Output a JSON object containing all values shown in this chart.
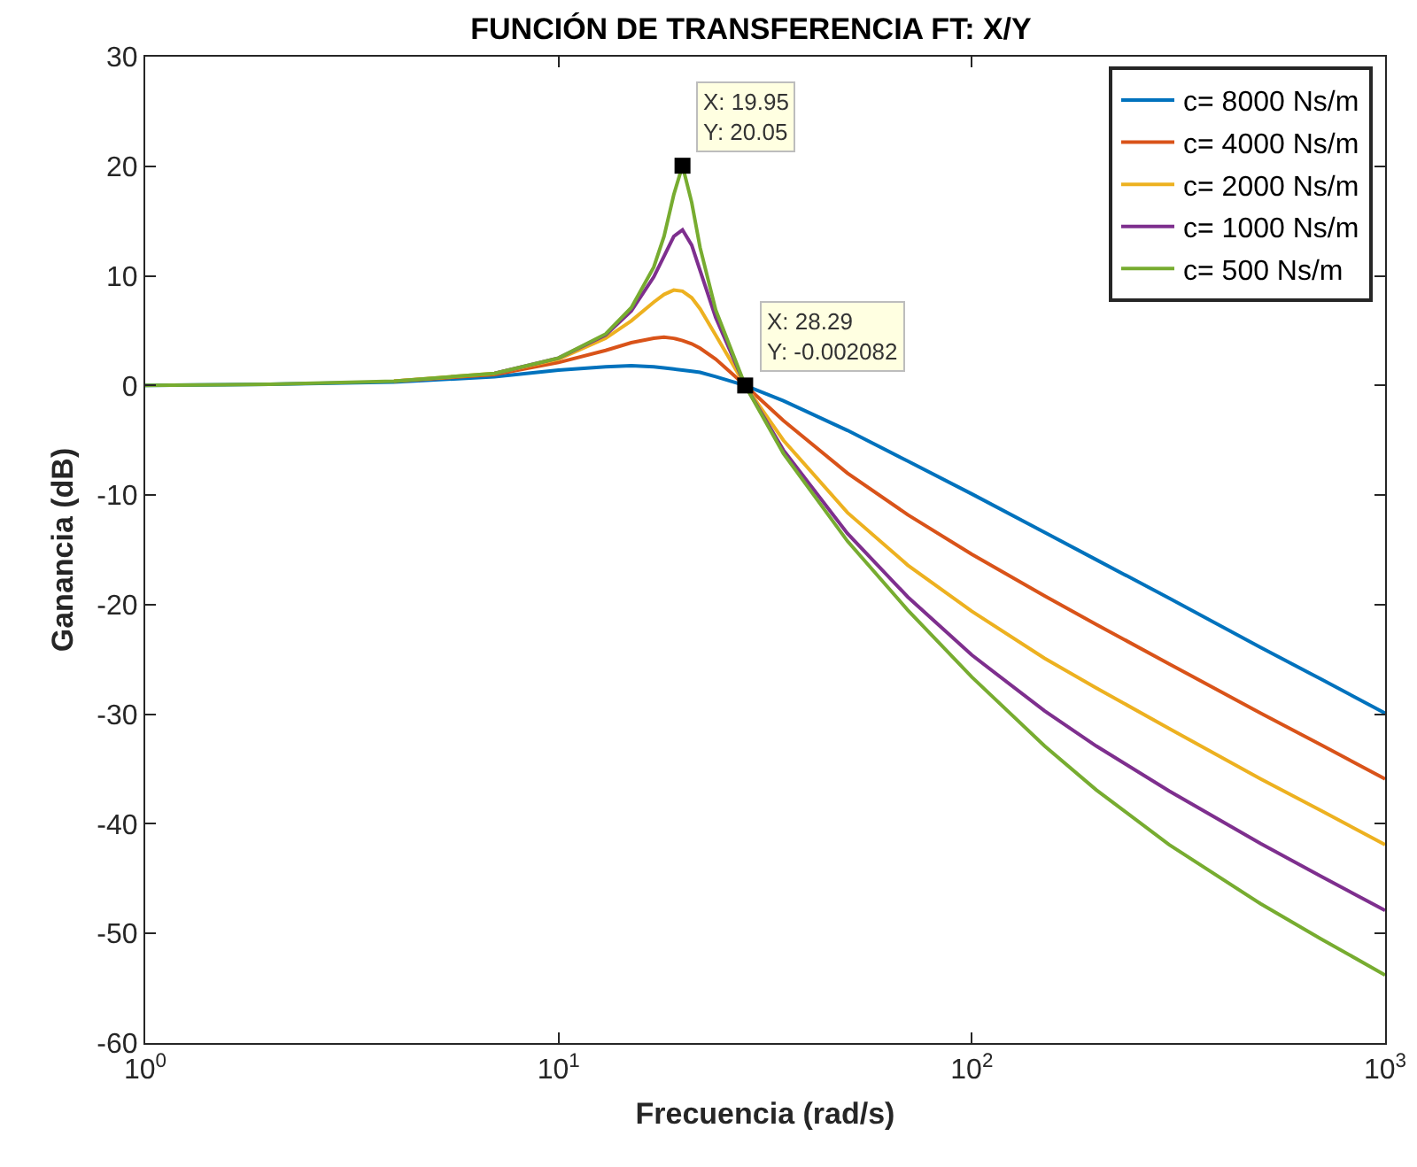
{
  "chart_data": {
    "type": "line",
    "title": "FUNCIÓN DE TRANSFERENCIA FT: X/Y",
    "xlabel": "Frecuencia (rad/s)",
    "ylabel": "Ganancia (dB)",
    "x": [
      1,
      2,
      4,
      7,
      10,
      13,
      15,
      17,
      18,
      19,
      19.95,
      21,
      22,
      24,
      28.29,
      35,
      50,
      70,
      100,
      150,
      200,
      300,
      500,
      700,
      1000
    ],
    "series": [
      {
        "name": "c= 8000 Ns/m",
        "color": "#0072bd",
        "values": [
          0,
          0.1,
          0.3,
          0.8,
          1.4,
          1.7,
          1.8,
          1.7,
          1.6,
          1.5,
          1.4,
          1.3,
          1.2,
          0.8,
          0,
          -1.4,
          -4.1,
          -6.9,
          -9.9,
          -13.4,
          -15.9,
          -19.4,
          -23.9,
          -26.8,
          -29.9
        ]
      },
      {
        "name": "c= 4000 Ns/m",
        "color": "#d95319",
        "values": [
          null,
          null,
          0.4,
          1.0,
          2.1,
          3.2,
          3.9,
          4.3,
          4.4,
          4.3,
          4.1,
          3.8,
          3.4,
          2.4,
          0,
          -3.2,
          -8.0,
          -11.8,
          -15.4,
          -19.2,
          -21.8,
          -25.4,
          -29.9,
          -32.8,
          -35.9
        ]
      },
      {
        "name": "c= 2000 Ns/m",
        "color": "#edb120",
        "values": [
          null,
          null,
          0.4,
          1.1,
          2.4,
          4.3,
          5.9,
          7.6,
          8.3,
          8.7,
          8.6,
          8.0,
          7.0,
          4.6,
          0,
          -5.0,
          -11.6,
          -16.4,
          -20.6,
          -24.9,
          -27.6,
          -31.3,
          -35.9,
          -38.8,
          -41.9
        ]
      },
      {
        "name": "c= 1000 Ns/m",
        "color": "#7e2f8e",
        "values": [
          null,
          null,
          null,
          1.1,
          2.5,
          4.6,
          6.8,
          9.9,
          11.8,
          13.6,
          14.2,
          12.8,
          10.5,
          6.2,
          0,
          -5.9,
          -13.5,
          -19.3,
          -24.6,
          -29.7,
          -32.9,
          -37.0,
          -41.8,
          -44.8,
          -47.9
        ]
      },
      {
        "name": "c= 500 Ns/m",
        "color": "#77ac30",
        "values": [
          0,
          0.1,
          0.4,
          1.1,
          2.5,
          4.7,
          7.1,
          10.8,
          13.6,
          17.4,
          20.05,
          16.7,
          12.6,
          6.9,
          0,
          -6.2,
          -14.2,
          -20.5,
          -26.6,
          -32.9,
          -36.9,
          -41.9,
          -47.3,
          -50.5,
          -53.8
        ]
      },
      {
        "type": "scatter",
        "marker": "square",
        "color": "#000000",
        "x": [
          19.95,
          28.29
        ],
        "values": [
          20.05,
          -0.002082
        ]
      }
    ],
    "annotations": [
      {
        "text": "X: 19.95\nY: 20.05",
        "x": 19.95,
        "y": 20.05
      },
      {
        "text": "X: 28.29\nY: -0.002082",
        "x": 28.29,
        "y": -0.002082
      }
    ],
    "log": "x",
    "legend": "top right",
    "grid": false,
    "xlim": [
      1,
      1000
    ],
    "xticks": [
      {
        "value": 1,
        "label": "10$^{0}$"
      },
      {
        "value": 10,
        "label": "10$^{1}$"
      },
      {
        "value": 100,
        "label": "10$^{2}$"
      },
      {
        "value": 1000,
        "label": "10$^{3}$"
      }
    ],
    "ylim": [
      -60,
      30
    ],
    "yticks": [
      -60,
      -50,
      -40,
      -30,
      -20,
      -10,
      0,
      10,
      20,
      30
    ]
  }
}
